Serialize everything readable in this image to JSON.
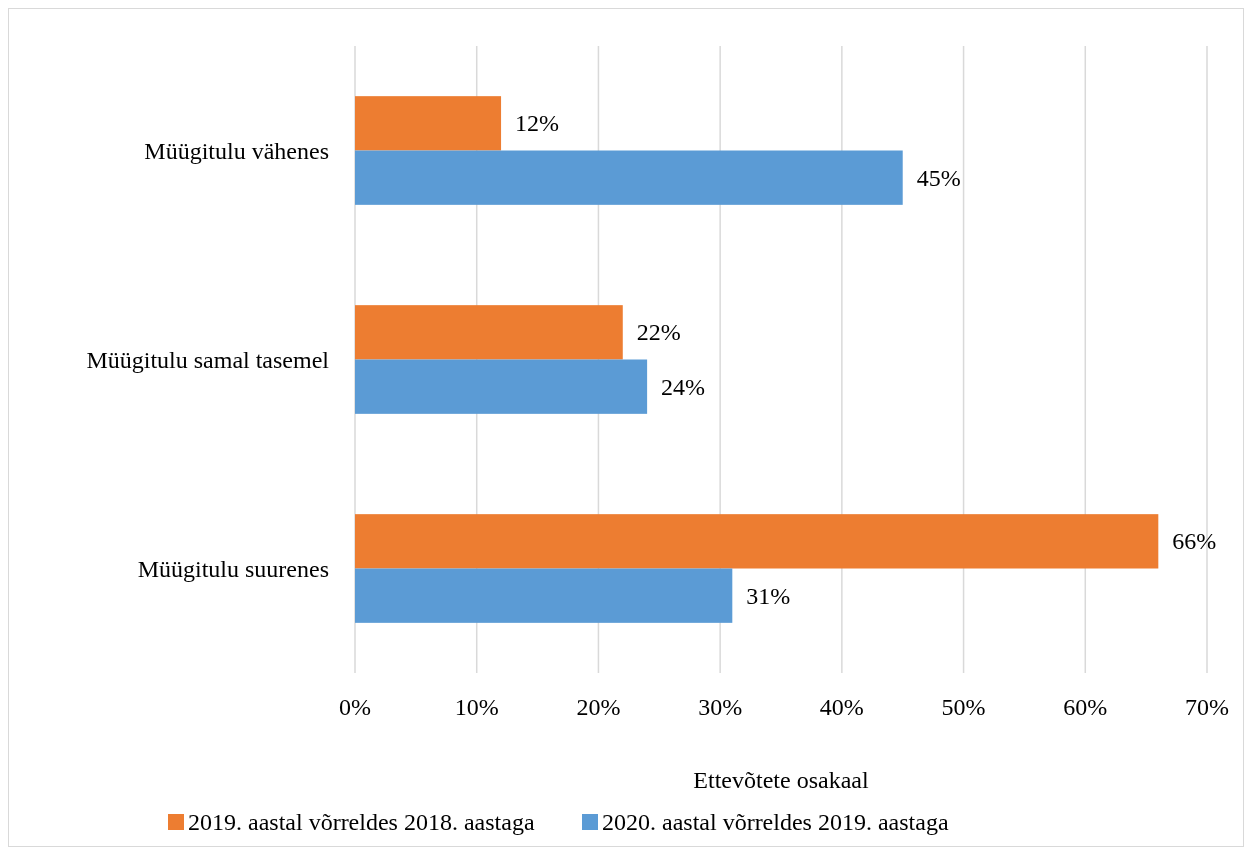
{
  "chart_data": {
    "type": "bar",
    "orientation": "horizontal",
    "categories": [
      "Müügitulu vähenes",
      "Müügitulu samal tasemel",
      "Müügitulu suurenes"
    ],
    "series": [
      {
        "name": "2019. aastal võrreldes 2018. aastaga",
        "color": "#ed7d31",
        "values": [
          12,
          22,
          66
        ],
        "value_labels": [
          "12%",
          "22%",
          "66%"
        ]
      },
      {
        "name": "2020. aastal võrreldes 2019. aastaga",
        "color": "#5b9bd5",
        "values": [
          45,
          24,
          31
        ],
        "value_labels": [
          "45%",
          "24%",
          "31%"
        ]
      }
    ],
    "xlim": [
      0,
      70
    ],
    "xticks": [
      {
        "value": 0,
        "label": "0%"
      },
      {
        "value": 10,
        "label": "10%"
      },
      {
        "value": 20,
        "label": "20%"
      },
      {
        "value": 30,
        "label": "30%"
      },
      {
        "value": 40,
        "label": "40%"
      },
      {
        "value": 50,
        "label": "50%"
      },
      {
        "value": 60,
        "label": "60%"
      },
      {
        "value": 70,
        "label": "70%"
      }
    ],
    "xlabel": "Ettevõtete osakaal",
    "grid": "x",
    "legend": "bottom"
  }
}
